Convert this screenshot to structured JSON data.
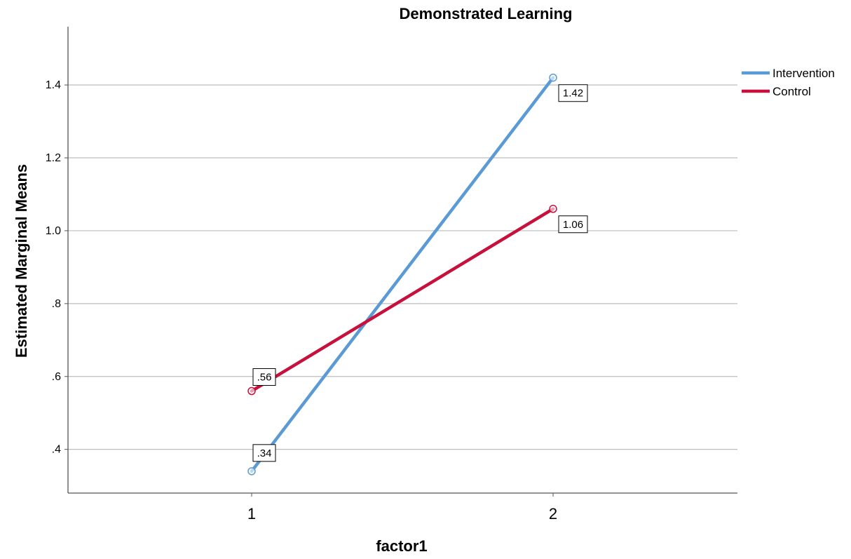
{
  "chart_data": {
    "type": "line",
    "title": "Demonstrated Learning",
    "xlabel": "factor1",
    "ylabel": "Estimated Marginal Means",
    "categories": [
      "1",
      "2"
    ],
    "ylim": [
      0.28,
      1.56
    ],
    "yticks": [
      0.4,
      0.6,
      0.8,
      1.0,
      1.2,
      1.4
    ],
    "ytick_labels": [
      ".4",
      ".6",
      ".8",
      "1.0",
      "1.2",
      "1.4"
    ],
    "grid": true,
    "legend_position": "top-right",
    "series": [
      {
        "name": "Intervention",
        "values": [
          0.34,
          1.42
        ],
        "labels": [
          ".34",
          "1.42"
        ],
        "color": "#5b9bd5"
      },
      {
        "name": "Control",
        "values": [
          0.56,
          1.06
        ],
        "labels": [
          ".56",
          "1.06"
        ],
        "color": "#c8103c"
      }
    ]
  }
}
